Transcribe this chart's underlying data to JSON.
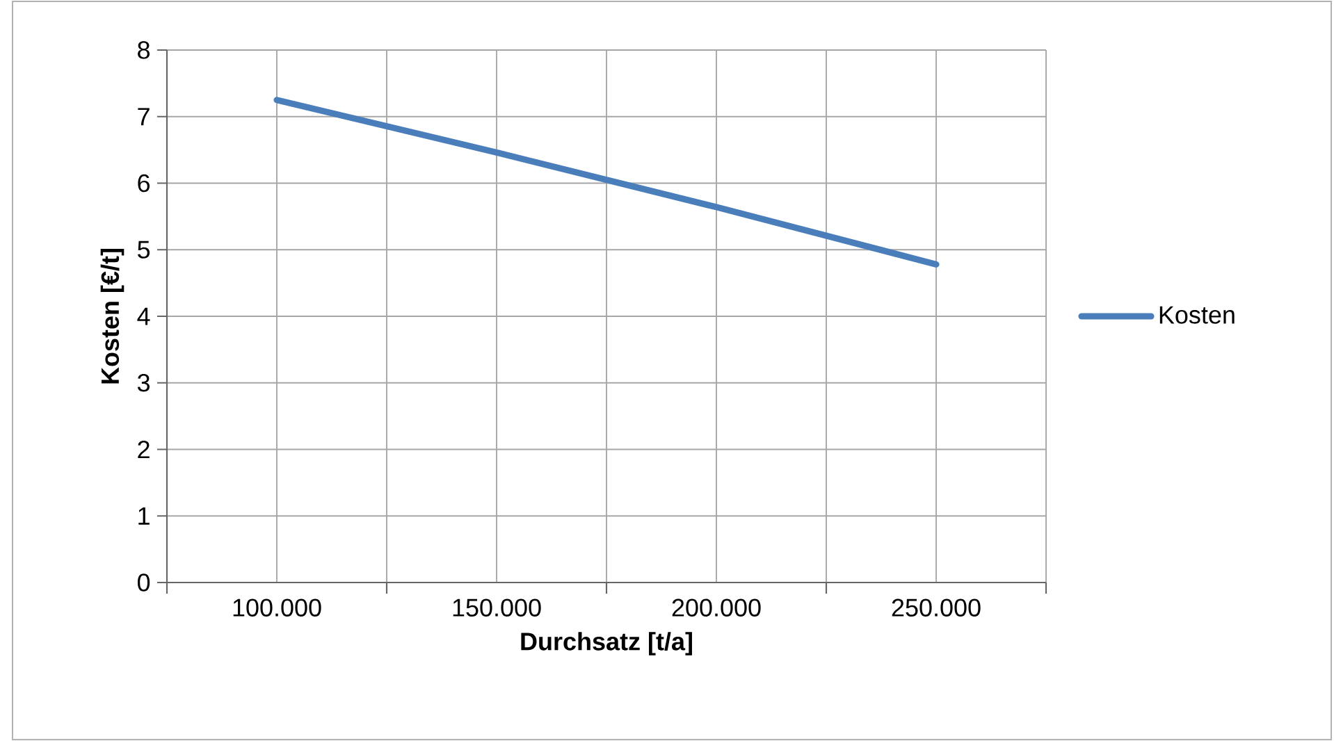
{
  "chart_data": {
    "type": "line",
    "xlabel": "Durchsatz [t/a]",
    "ylabel": "Kosten [€/t]",
    "categories": [
      "100.000",
      "150.000",
      "200.000",
      "250.000"
    ],
    "series": [
      {
        "name": "Kosten",
        "color": "#4a7ebb",
        "values": [
          7.25,
          6.46,
          5.64,
          4.78
        ]
      }
    ],
    "ylim": [
      0,
      8
    ],
    "yticks": [
      0,
      1,
      2,
      3,
      4,
      5,
      6,
      7,
      8
    ],
    "grid": true,
    "legend": "right",
    "marker": "none",
    "line_style": "solid"
  }
}
